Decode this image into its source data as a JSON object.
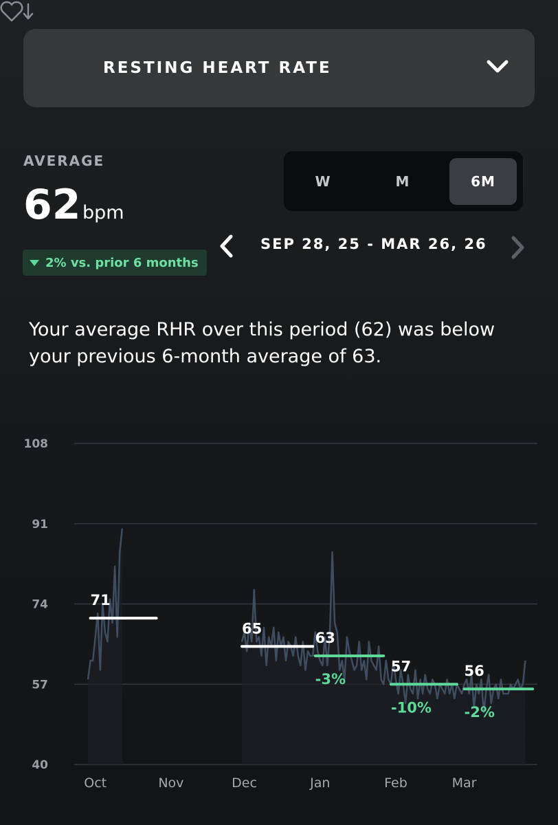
{
  "header": {
    "metric_title": "RESTING HEART RATE",
    "icon": "heart-down-icon",
    "dropdown_icon": "chevron-down-icon"
  },
  "summary_stats": {
    "average_label": "AVERAGE",
    "average_value": "62",
    "average_unit": "bpm",
    "change_text": "2% vs. prior 6 months",
    "change_color": "#5fd99a"
  },
  "range_toggle": {
    "options": [
      "W",
      "M",
      "6M"
    ],
    "selected": "6M"
  },
  "date_nav": {
    "range_text": "SEP 28, 25 - MAR 26, 26",
    "prev_icon": "chevron-left-icon",
    "next_icon": "chevron-right-icon"
  },
  "insight": "Your average RHR over this period (62) was below your previous 6-month average of 63.",
  "colors": {
    "accent_green": "#5fd99a",
    "line": "#3f4d60",
    "avg_white": "#ffffff"
  },
  "chart_data": {
    "type": "line",
    "xlabel": "",
    "ylabel": "",
    "ylim": [
      40,
      108
    ],
    "yticks": [
      108,
      91,
      74,
      57,
      40
    ],
    "xlim": [
      0,
      180
    ],
    "x_ticks": [
      {
        "label": "Oct",
        "x": 3
      },
      {
        "label": "Nov",
        "x": 34
      },
      {
        "label": "Dec",
        "x": 64
      },
      {
        "label": "Jan",
        "x": 95
      },
      {
        "label": "Feb",
        "x": 126
      },
      {
        "label": "Mar",
        "x": 154
      }
    ],
    "grid": true,
    "series": [
      {
        "segments": [
          [
            [
              0,
              58
            ],
            [
              1,
              62
            ],
            [
              2,
              62
            ],
            [
              3,
              67
            ],
            [
              4,
              72
            ],
            [
              5,
              60
            ],
            [
              6,
              74
            ],
            [
              7,
              68
            ],
            [
              8,
              66
            ],
            [
              9,
              75
            ],
            [
              10,
              70
            ],
            [
              11,
              82
            ],
            [
              12,
              67
            ],
            [
              13,
              85
            ],
            [
              14,
              90
            ]
          ],
          [
            [
              63,
              66
            ],
            [
              64,
              68
            ],
            [
              65,
              64
            ],
            [
              66,
              70
            ],
            [
              67,
              66
            ],
            [
              68,
              77
            ],
            [
              69,
              66
            ],
            [
              70,
              67
            ],
            [
              71,
              63
            ],
            [
              72,
              69
            ],
            [
              73,
              61
            ],
            [
              74,
              67
            ],
            [
              75,
              65
            ],
            [
              76,
              69
            ],
            [
              77,
              62
            ],
            [
              78,
              68
            ],
            [
              79,
              65
            ],
            [
              80,
              67
            ],
            [
              81,
              62
            ],
            [
              82,
              66
            ],
            [
              83,
              65
            ],
            [
              84,
              63
            ],
            [
              85,
              67
            ],
            [
              86,
              63
            ],
            [
              87,
              61
            ],
            [
              88,
              66
            ],
            [
              89,
              60
            ],
            [
              90,
              64
            ],
            [
              91,
              63
            ],
            [
              92,
              63
            ],
            [
              93,
              68
            ],
            [
              94,
              64
            ],
            [
              95,
              62
            ],
            [
              96,
              61
            ],
            [
              97,
              67
            ],
            [
              98,
              61
            ],
            [
              99,
              68
            ],
            [
              100,
              85
            ],
            [
              101,
              70
            ],
            [
              102,
              68
            ],
            [
              103,
              60
            ],
            [
              104,
              62
            ],
            [
              105,
              58
            ],
            [
              106,
              67
            ],
            [
              107,
              64
            ],
            [
              108,
              62
            ],
            [
              109,
              60
            ],
            [
              110,
              61
            ],
            [
              111,
              66
            ],
            [
              112,
              60
            ],
            [
              113,
              62
            ],
            [
              114,
              58
            ],
            [
              115,
              66
            ],
            [
              116,
              62
            ],
            [
              117,
              61
            ],
            [
              118,
              60
            ],
            [
              119,
              65
            ],
            [
              120,
              58
            ],
            [
              121,
              57
            ],
            [
              122,
              62
            ],
            [
              123,
              58
            ],
            [
              124,
              57
            ],
            [
              125,
              62
            ],
            [
              126,
              58
            ],
            [
              127,
              55
            ],
            [
              128,
              60
            ],
            [
              129,
              57
            ],
            [
              130,
              53
            ],
            [
              131,
              59
            ],
            [
              132,
              56
            ],
            [
              133,
              55
            ],
            [
              134,
              60
            ],
            [
              135,
              54
            ],
            [
              136,
              58
            ],
            [
              137,
              55
            ],
            [
              138,
              59
            ],
            [
              139,
              56
            ],
            [
              140,
              55
            ],
            [
              141,
              58
            ],
            [
              142,
              57
            ],
            [
              143,
              54
            ],
            [
              144,
              57
            ],
            [
              145,
              56
            ],
            [
              146,
              55
            ],
            [
              147,
              58
            ],
            [
              148,
              55
            ],
            [
              149,
              57
            ],
            [
              150,
              54
            ],
            [
              151,
              57
            ],
            [
              152,
              56
            ],
            [
              153,
              55
            ],
            [
              154,
              57
            ],
            [
              155,
              58
            ],
            [
              156,
              55
            ],
            [
              157,
              59
            ],
            [
              158,
              52
            ],
            [
              159,
              57
            ],
            [
              160,
              55
            ],
            [
              161,
              58
            ],
            [
              162,
              51
            ],
            [
              163,
              56
            ],
            [
              164,
              59
            ],
            [
              165,
              53
            ],
            [
              166,
              56
            ],
            [
              167,
              57
            ],
            [
              168,
              54
            ],
            [
              169,
              58
            ],
            [
              170,
              55
            ],
            [
              171,
              55
            ],
            [
              172,
              55
            ],
            [
              173,
              57
            ],
            [
              174,
              56
            ],
            [
              175,
              57
            ],
            [
              176,
              58
            ],
            [
              177,
              56
            ],
            [
              178,
              57
            ],
            [
              179,
              62
            ]
          ]
        ]
      }
    ],
    "monthly_averages": [
      {
        "month": "Oct",
        "x_start": 1,
        "x_end": 28,
        "value": 71,
        "label": "71",
        "change": "",
        "color": "#ffffff"
      },
      {
        "month": "Dec",
        "x_start": 63,
        "x_end": 92,
        "value": 65,
        "label": "65",
        "change": "",
        "color": "#ffffff"
      },
      {
        "month": "Jan",
        "x_start": 93,
        "x_end": 121,
        "value": 63,
        "label": "63",
        "change": "-3%",
        "color": "#5fd99a"
      },
      {
        "month": "Feb",
        "x_start": 124,
        "x_end": 151,
        "value": 57,
        "label": "57",
        "change": "-10%",
        "color": "#5fd99a"
      },
      {
        "month": "Mar",
        "x_start": 154,
        "x_end": 182,
        "value": 56,
        "label": "56",
        "change": "-2%",
        "color": "#5fd99a"
      }
    ]
  }
}
